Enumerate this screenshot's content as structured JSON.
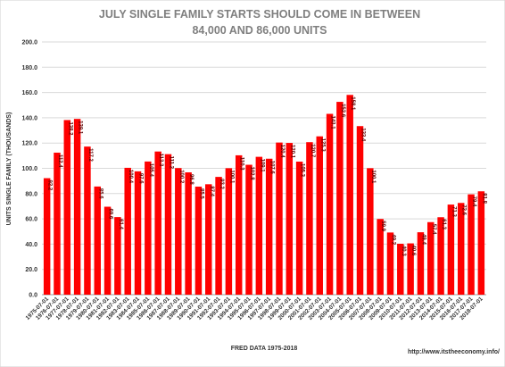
{
  "chart_data": {
    "type": "bar",
    "title": [
      "JULY SINGLE FAMILY STARTS SHOULD COME IN BETWEEN",
      "84,000 AND 86,000 UNITS"
    ],
    "y_label": "UNITS SINGLE FAMILY (THOUSANDS)",
    "footer_left": "FRED  DATA 1975-2018",
    "footer_right": "http://www.itstheeconomy.info/",
    "color": "#ff0000",
    "grid": true,
    "ylim": [
      0,
      200
    ],
    "yticks": [
      {
        "value": 0,
        "label": "0.0"
      },
      {
        "value": 20,
        "label": "20.0"
      },
      {
        "value": 40,
        "label": "40.0"
      },
      {
        "value": 60,
        "label": "60.0"
      },
      {
        "value": 80,
        "label": "80.0"
      },
      {
        "value": 100,
        "label": "100.0"
      },
      {
        "value": 120,
        "label": "120.0"
      },
      {
        "value": 140,
        "label": "140.0"
      },
      {
        "value": 160,
        "label": "160.0"
      },
      {
        "value": 180,
        "label": "180.0"
      },
      {
        "value": 200,
        "label": "200.0"
      }
    ],
    "categories": [
      "1975-07-01",
      "1976-07-01",
      "1977-07-01",
      "1978-07-01",
      "1979-07-01",
      "1980-07-01",
      "1981-07-01",
      "1982-07-01",
      "1983-07-01",
      "1984-07-01",
      "1985-07-01",
      "1986-07-01",
      "1987-07-01",
      "1988-07-01",
      "1989-07-01",
      "1990-07-01",
      "1991-07-01",
      "1992-07-01",
      "1993-07-01",
      "1994-07-01",
      "1995-07-01",
      "1996-07-01",
      "1997-07-01",
      "1998-07-01",
      "1999-07-01",
      "2000-07-01",
      "2001-07-01",
      "2002-07-01",
      "2003-07-01",
      "2004-07-01",
      "2005-07-01",
      "2006-07-01",
      "2007-07-01",
      "2008-07-01",
      "2009-07-01",
      "2010-07-01",
      "2011-07-01",
      "2012-07-01",
      "2013-07-01",
      "2014-07-01",
      "2015-07-01",
      "2016-07-01",
      "2017-07-01",
      "2018-07-01"
    ],
    "values": [
      92.2,
      112.4,
      138.2,
      139.1,
      117.2,
      85.6,
      69.6,
      61.4,
      100.4,
      97.6,
      105.4,
      113.3,
      111.2,
      100.2,
      96.8,
      85.5,
      87.4,
      93.2,
      100.1,
      110.3,
      102.8,
      109.1,
      107.6,
      120.4,
      120.1,
      105.3,
      120.7,
      125.3,
      143.1,
      152.6,
      158.1,
      133.4,
      100.1,
      59.9,
      49.2,
      40.3,
      40.6,
      49.4,
      57.4,
      61.3,
      71.3,
      72.6,
      79.4,
      81.8
    ]
  }
}
